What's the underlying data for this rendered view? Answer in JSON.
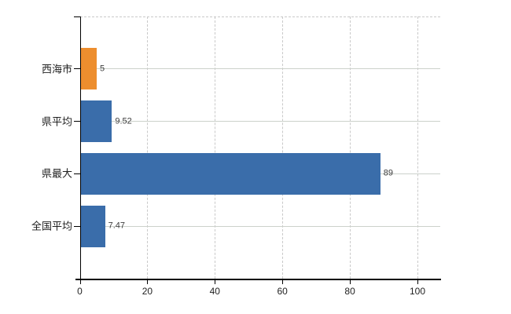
{
  "chart_data": {
    "type": "bar",
    "orientation": "horizontal",
    "title": "",
    "categories": [
      "西海市",
      "県平均",
      "県最大",
      "全国平均"
    ],
    "values": [
      5,
      9.52,
      89,
      7.47
    ],
    "value_labels": [
      "5",
      "9.52",
      "89",
      "7.47"
    ],
    "bar_colors": [
      "#ed8e2e",
      "#3a6daa",
      "#3a6daa",
      "#3a6daa"
    ],
    "xlabel": "",
    "ylabel": "",
    "xlim": [
      0,
      106.6
    ],
    "x_ticks": [
      0,
      20,
      40,
      60,
      80,
      100
    ],
    "x_tick_labels": [
      "0",
      "20",
      "40",
      "60",
      "80",
      "100"
    ],
    "legend": "none",
    "grid": {
      "vertical_value_gridlines": "dashed",
      "horizontal_category_gridlines": "solid",
      "top_plot_border": "dashed"
    },
    "colors": {
      "background": "#ffffff",
      "axis": "#000000",
      "gridline": "#c9c9c9",
      "category_gridline": "#ccd1cb",
      "highlight_bar": "#ed8e2e",
      "default_bar": "#3a6daa",
      "text": "#1f1f1f",
      "value_text": "#3d3d3d"
    }
  }
}
